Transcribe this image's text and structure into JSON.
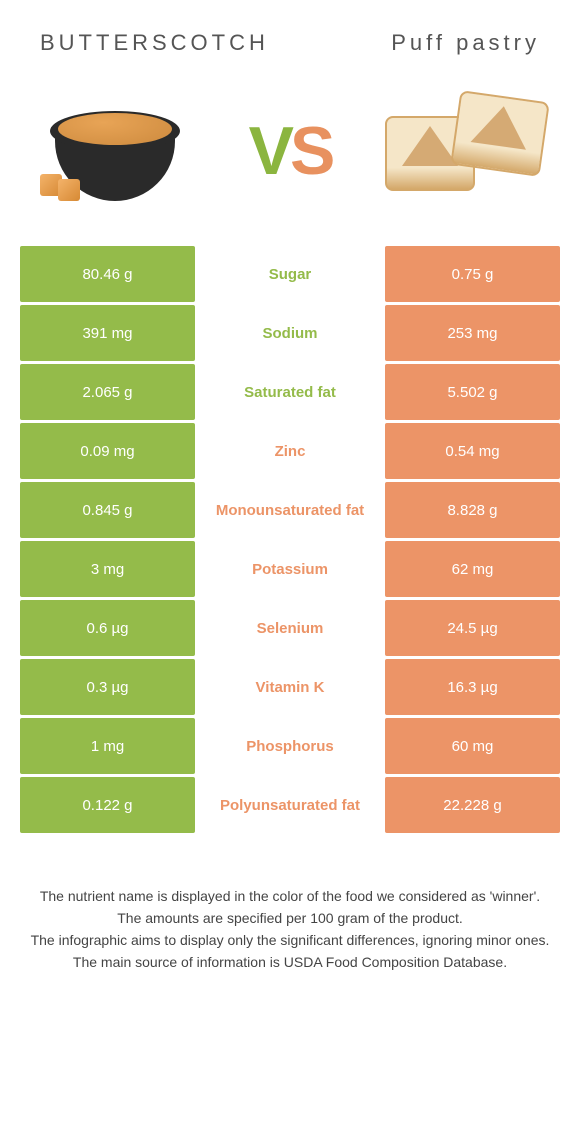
{
  "header": {
    "left_title": "BUTTERSCOTCH",
    "right_title": "Puff pastry"
  },
  "vs": {
    "v": "V",
    "s": "S"
  },
  "colors": {
    "left_bg": "#94bb4a",
    "right_bg": "#ec9467",
    "left_text": "#94bb4a",
    "right_text": "#ec9467"
  },
  "rows": [
    {
      "left": "80.46 g",
      "label": "Sugar",
      "right": "0.75 g",
      "winner": "left"
    },
    {
      "left": "391 mg",
      "label": "Sodium",
      "right": "253 mg",
      "winner": "left"
    },
    {
      "left": "2.065 g",
      "label": "Saturated fat",
      "right": "5.502 g",
      "winner": "left"
    },
    {
      "left": "0.09 mg",
      "label": "Zinc",
      "right": "0.54 mg",
      "winner": "right"
    },
    {
      "left": "0.845 g",
      "label": "Monounsaturated fat",
      "right": "8.828 g",
      "winner": "right"
    },
    {
      "left": "3 mg",
      "label": "Potassium",
      "right": "62 mg",
      "winner": "right"
    },
    {
      "left": "0.6 µg",
      "label": "Selenium",
      "right": "24.5 µg",
      "winner": "right"
    },
    {
      "left": "0.3 µg",
      "label": "Vitamin K",
      "right": "16.3 µg",
      "winner": "right"
    },
    {
      "left": "1 mg",
      "label": "Phosphorus",
      "right": "60 mg",
      "winner": "right"
    },
    {
      "left": "0.122 g",
      "label": "Polyunsaturated fat",
      "right": "22.228 g",
      "winner": "right"
    }
  ],
  "footer": {
    "line1": "The nutrient name is displayed in the color of the food we considered as 'winner'.",
    "line2": "The amounts are specified per 100 gram of the product.",
    "line3": "The infographic aims to display only the significant differences, ignoring minor ones.",
    "line4": "The main source of information is USDA Food Composition Database."
  }
}
